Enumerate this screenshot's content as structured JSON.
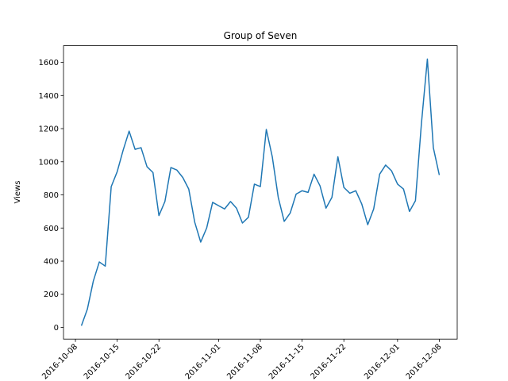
{
  "chart_data": {
    "type": "line",
    "title": "Group of Seven",
    "y_label": "Views",
    "color": "#1f77b4",
    "x": [
      "2016-10-09",
      "2016-10-10",
      "2016-10-11",
      "2016-10-12",
      "2016-10-13",
      "2016-10-14",
      "2016-10-15",
      "2016-10-16",
      "2016-10-17",
      "2016-10-18",
      "2016-10-19",
      "2016-10-20",
      "2016-10-21",
      "2016-10-22",
      "2016-10-23",
      "2016-10-24",
      "2016-10-25",
      "2016-10-26",
      "2016-10-27",
      "2016-10-28",
      "2016-10-29",
      "2016-10-30",
      "2016-10-31",
      "2016-11-01",
      "2016-11-02",
      "2016-11-03",
      "2016-11-04",
      "2016-11-05",
      "2016-11-06",
      "2016-11-07",
      "2016-11-08",
      "2016-11-09",
      "2016-11-10",
      "2016-11-11",
      "2016-11-12",
      "2016-11-13",
      "2016-11-14",
      "2016-11-15",
      "2016-11-16",
      "2016-11-17",
      "2016-11-18",
      "2016-11-19",
      "2016-11-20",
      "2016-11-21",
      "2016-11-22",
      "2016-11-23",
      "2016-11-24",
      "2016-11-25",
      "2016-11-26",
      "2016-11-27",
      "2016-11-28",
      "2016-11-29",
      "2016-11-30",
      "2016-12-01",
      "2016-12-02",
      "2016-12-03",
      "2016-12-04",
      "2016-12-05",
      "2016-12-06",
      "2016-12-07",
      "2016-12-08"
    ],
    "values": [
      10,
      110,
      280,
      395,
      370,
      850,
      940,
      1070,
      1185,
      1075,
      1085,
      970,
      935,
      675,
      760,
      965,
      950,
      905,
      835,
      635,
      515,
      600,
      755,
      735,
      715,
      760,
      720,
      630,
      665,
      865,
      850,
      1195,
      1030,
      785,
      640,
      690,
      805,
      825,
      815,
      925,
      855,
      720,
      785,
      1030,
      845,
      810,
      825,
      745,
      620,
      715,
      925,
      980,
      945,
      865,
      835,
      700,
      765,
      1230,
      1620,
      1085,
      920
    ],
    "xlim": [
      "2016-10-06",
      "2016-12-11"
    ],
    "xticks": [
      "2016-10-08",
      "2016-10-15",
      "2016-10-22",
      "2016-11-01",
      "2016-11-08",
      "2016-11-15",
      "2016-11-22",
      "2016-12-01",
      "2016-12-08"
    ],
    "ylim": [
      -70.5,
      1700.5
    ],
    "yticks": [
      0,
      200,
      400,
      600,
      800,
      1000,
      1200,
      1400,
      1600
    ]
  }
}
